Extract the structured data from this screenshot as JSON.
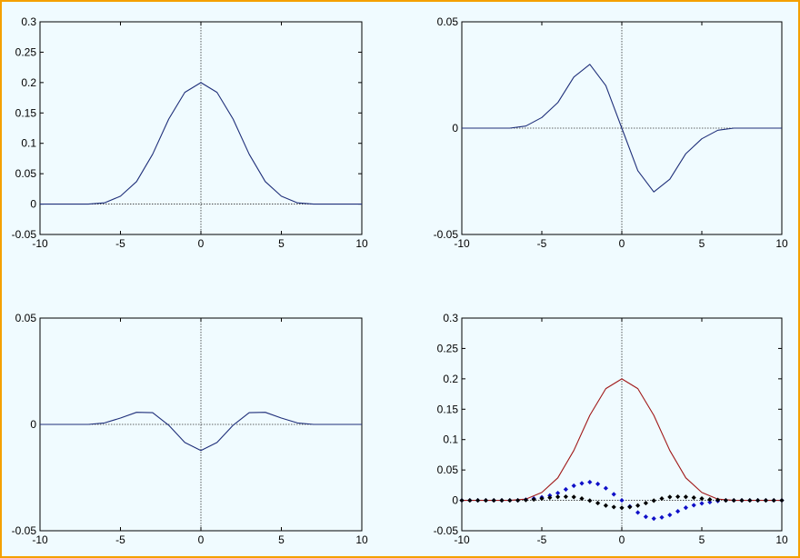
{
  "chart_data": [
    {
      "type": "line",
      "xlim": [
        -10,
        10
      ],
      "ylim": [
        -0.05,
        0.3
      ],
      "xticks": [
        -10,
        -5,
        0,
        5,
        10
      ],
      "yticks": [
        -0.05,
        0,
        0.05,
        0.1,
        0.15,
        0.2,
        0.25,
        0.3
      ],
      "ytick_labels": [
        "-0.05",
        "0",
        "0.05",
        "0.1",
        "0.15",
        "0.2",
        "0.25",
        "0.3"
      ],
      "grid": false,
      "series": [
        {
          "color": "#1f2f7a",
          "style": "line",
          "x": [
            -10,
            -9,
            -8,
            -7,
            -6,
            -5,
            -4,
            -3,
            -2,
            -1,
            0,
            1,
            2,
            3,
            4,
            5,
            6,
            7,
            8,
            9,
            10
          ],
          "values": [
            0.0,
            0.0,
            0.0,
            0.0,
            0.002,
            0.013,
            0.037,
            0.082,
            0.14,
            0.184,
            0.2,
            0.184,
            0.14,
            0.082,
            0.037,
            0.013,
            0.002,
            0.0,
            0.0,
            0.0,
            0.0
          ]
        }
      ]
    },
    {
      "type": "line",
      "xlim": [
        -10,
        10
      ],
      "ylim": [
        -0.05,
        0.05
      ],
      "xticks": [
        -10,
        -5,
        0,
        5,
        10
      ],
      "yticks": [
        -0.05,
        0,
        0.05
      ],
      "ytick_labels": [
        "-0.05",
        "0",
        "0.05"
      ],
      "grid": false,
      "series": [
        {
          "color": "#1f2f7a",
          "style": "line",
          "x": [
            -10,
            -9,
            -8,
            -7,
            -6,
            -5,
            -4,
            -3,
            -2,
            -1,
            0,
            1,
            2,
            3,
            4,
            5,
            6,
            7,
            8,
            9,
            10
          ],
          "values": [
            0.0,
            0.0,
            0.0,
            0.0,
            0.001,
            0.005,
            0.012,
            0.024,
            0.03,
            0.02,
            0.0,
            -0.02,
            -0.03,
            -0.024,
            -0.012,
            -0.005,
            -0.001,
            0.0,
            0.0,
            0.0,
            0.0
          ]
        }
      ]
    },
    {
      "type": "line",
      "xlim": [
        -10,
        10
      ],
      "ylim": [
        -0.05,
        0.05
      ],
      "xticks": [
        -10,
        -5,
        0,
        5,
        10
      ],
      "yticks": [
        -0.05,
        0,
        0.05
      ],
      "ytick_labels": [
        "-0.05",
        "0",
        "0.05"
      ],
      "grid": false,
      "series": [
        {
          "color": "#1f2f7a",
          "style": "line",
          "x": [
            -10,
            -9,
            -8,
            -7,
            -6,
            -5,
            -4,
            -3,
            -2,
            -1,
            0,
            1,
            2,
            3,
            4,
            5,
            6,
            7,
            8,
            9,
            10
          ],
          "values": [
            0.0,
            0.0,
            0.0,
            0.0,
            0.0007,
            0.003,
            0.0057,
            0.0055,
            -0.0004,
            -0.0085,
            -0.0123,
            -0.0085,
            -0.0004,
            0.0055,
            0.0057,
            0.003,
            0.0007,
            0.0,
            0.0,
            0.0,
            0.0
          ]
        }
      ]
    },
    {
      "type": "line",
      "xlim": [
        -10,
        10
      ],
      "ylim": [
        -0.05,
        0.3
      ],
      "xticks": [
        -10,
        -5,
        0,
        5,
        10
      ],
      "yticks": [
        -0.05,
        0,
        0.05,
        0.1,
        0.15,
        0.2,
        0.25,
        0.3
      ],
      "ytick_labels": [
        "-0.05",
        "0",
        "0.05",
        "0.1",
        "0.15",
        "0.2",
        "0.25",
        "0.3"
      ],
      "grid": false,
      "series": [
        {
          "color": "#a01818",
          "style": "line",
          "x": [
            -10,
            -9,
            -8,
            -7,
            -6,
            -5,
            -4,
            -3,
            -2,
            -1,
            0,
            1,
            2,
            3,
            4,
            5,
            6,
            7,
            8,
            9,
            10
          ],
          "values": [
            0.0,
            0.0,
            0.0,
            0.0,
            0.002,
            0.013,
            0.037,
            0.082,
            0.14,
            0.184,
            0.2,
            0.184,
            0.14,
            0.082,
            0.037,
            0.013,
            0.002,
            0.0,
            0.0,
            0.0,
            0.0
          ]
        },
        {
          "color": "#1010c8",
          "style": "markers",
          "x": [
            -10,
            -9.5,
            -9,
            -8.5,
            -8,
            -7.5,
            -7,
            -6.5,
            -6,
            -5.5,
            -5,
            -4.5,
            -4,
            -3.5,
            -3,
            -2.5,
            -2,
            -1.5,
            -1,
            -0.5,
            0,
            0.5,
            1,
            1.5,
            2,
            2.5,
            3,
            3.5,
            4,
            4.5,
            5,
            5.5,
            6,
            6.5,
            7,
            7.5,
            8,
            8.5,
            9,
            9.5,
            10
          ],
          "values": [
            0.0,
            0.0,
            0.0,
            0.0,
            0.0,
            0.0,
            0.0,
            0.0,
            0.001,
            0.003,
            0.005,
            0.008,
            0.012,
            0.018,
            0.024,
            0.028,
            0.03,
            0.027,
            0.02,
            0.01,
            0.0,
            -0.01,
            -0.02,
            -0.027,
            -0.03,
            -0.028,
            -0.024,
            -0.018,
            -0.012,
            -0.008,
            -0.005,
            -0.003,
            -0.001,
            0.0,
            0.0,
            0.0,
            0.0,
            0.0,
            0.0,
            0.0,
            0.0
          ]
        },
        {
          "color": "#000000",
          "style": "markers",
          "x": [
            -10,
            -9.5,
            -9,
            -8.5,
            -8,
            -7.5,
            -7,
            -6.5,
            -6,
            -5.5,
            -5,
            -4.5,
            -4,
            -3.5,
            -3,
            -2.5,
            -2,
            -1.5,
            -1,
            -0.5,
            0,
            0.5,
            1,
            1.5,
            2,
            2.5,
            3,
            3.5,
            4,
            4.5,
            5,
            5.5,
            6,
            6.5,
            7,
            7.5,
            8,
            8.5,
            9,
            9.5,
            10
          ],
          "values": [
            0.0,
            0.0,
            0.0,
            0.0,
            0.0,
            0.0,
            0.0,
            0.0,
            0.0007,
            0.0015,
            0.003,
            0.0045,
            0.0057,
            0.006,
            0.0055,
            0.003,
            -0.0004,
            -0.0045,
            -0.0085,
            -0.011,
            -0.0123,
            -0.011,
            -0.0085,
            -0.0045,
            -0.0004,
            0.003,
            0.0055,
            0.006,
            0.0057,
            0.0045,
            0.003,
            0.0015,
            0.0007,
            0.0,
            0.0,
            0.0,
            0.0,
            0.0,
            0.0,
            0.0,
            0.0
          ]
        }
      ]
    }
  ]
}
